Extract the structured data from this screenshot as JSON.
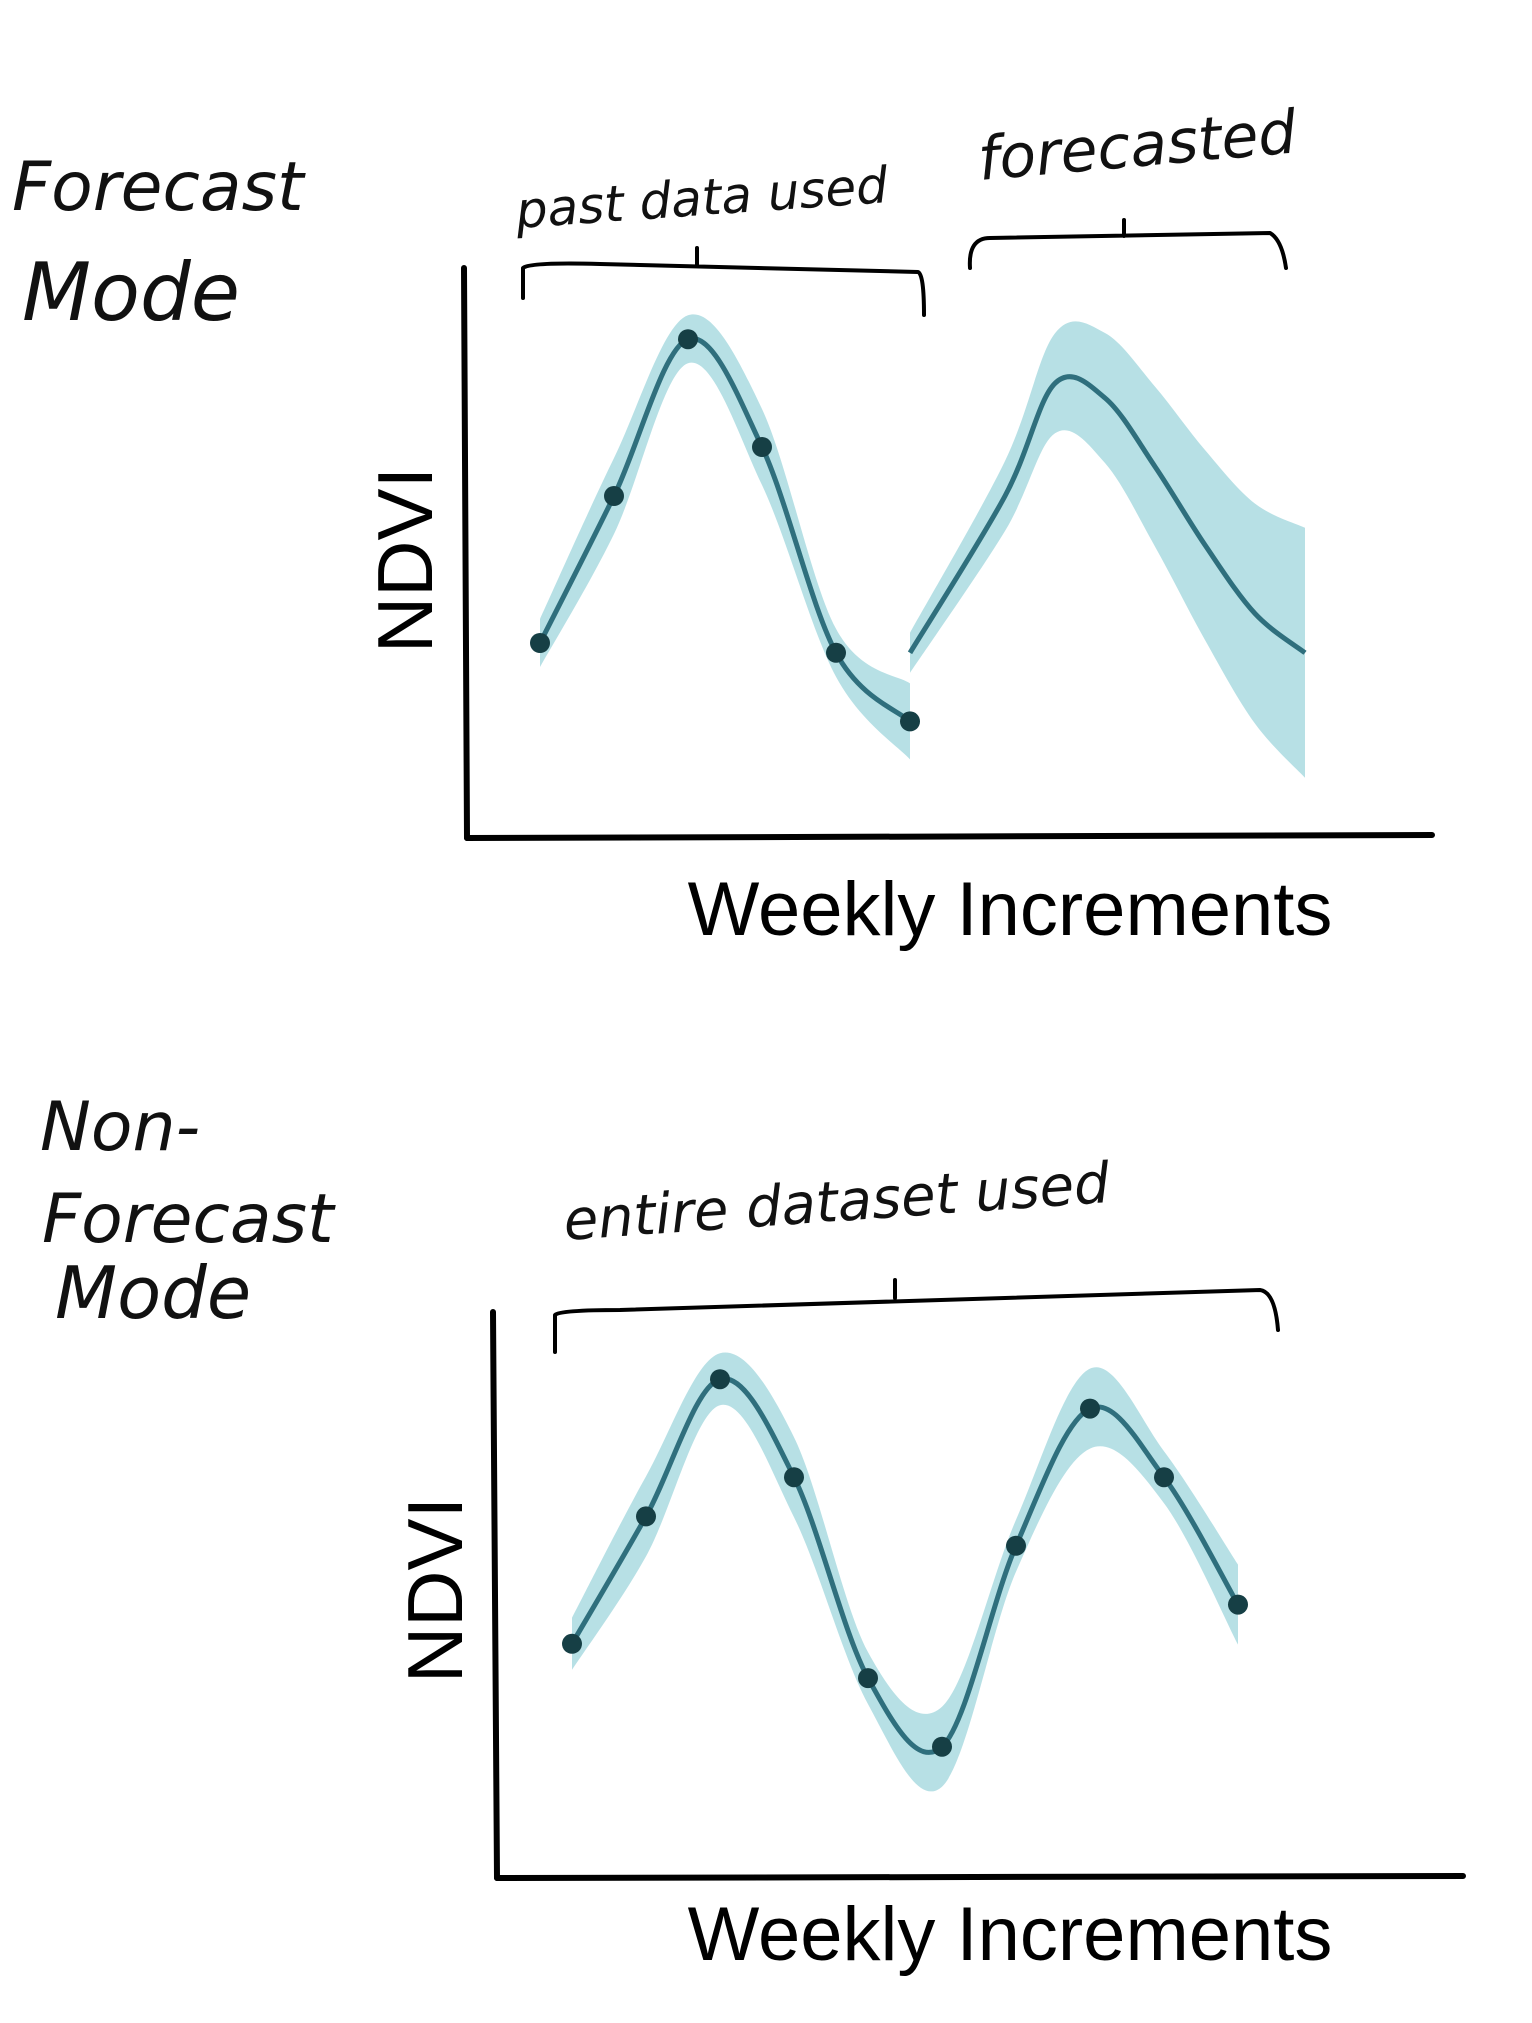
{
  "colors": {
    "band": "#9fd5dc",
    "line": "#2f6f7d",
    "point": "#163f45",
    "ink": "#111111"
  },
  "panels": [
    {
      "mode_label_lines": [
        "Forecast",
        "Mode"
      ],
      "brackets": [
        {
          "label": "past data used"
        },
        {
          "label": "forecasted"
        }
      ],
      "ylabel": "NDVI",
      "xlabel": "Weekly Increments",
      "observed_points": [
        0.3,
        0.6,
        0.92,
        0.7,
        0.28,
        0.14
      ],
      "forecast_curve": [
        0.28,
        0.6,
        0.83,
        0.8,
        0.66,
        0.5,
        0.36,
        0.28
      ]
    },
    {
      "mode_label_lines": [
        "Non-",
        "Forecast",
        "Mode"
      ],
      "brackets": [
        {
          "label": "entire dataset used"
        }
      ],
      "ylabel": "NDVI",
      "xlabel": "Weekly Increments",
      "observed_points": [
        0.38,
        0.64,
        0.92,
        0.72,
        0.31,
        0.17,
        0.58,
        0.86,
        0.72,
        0.46
      ]
    }
  ]
}
